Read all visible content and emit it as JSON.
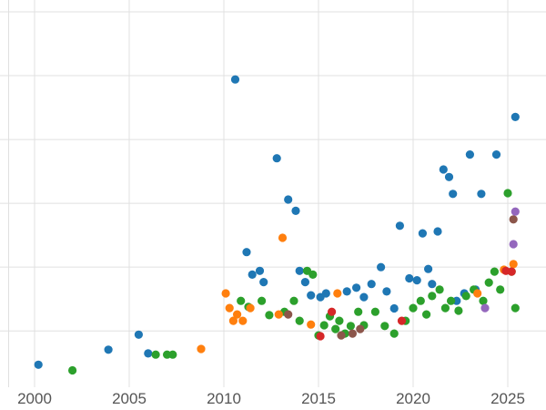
{
  "chart_data": {
    "type": "scatter",
    "title": "",
    "xlabel": "",
    "ylabel": "",
    "xlim": [
      1998.6,
      2027
    ],
    "ylim": [
      0,
      105
    ],
    "grid": true,
    "legend_position": "none",
    "x_tick_labels": [
      "2000",
      "2005",
      "2010",
      "2015",
      "2020",
      "2025"
    ],
    "x_tick_years": [
      2000,
      2005,
      2010,
      2015,
      2020,
      2025
    ],
    "y_gridlines": [
      15,
      32,
      49,
      66,
      83,
      100
    ],
    "grid_color": "#e0e0e0",
    "tick_label_color": "#555555",
    "marker_radius": 4.6,
    "series": [
      {
        "name": "blue",
        "color": "#1f77b4",
        "points": [
          [
            2000.2,
            6
          ],
          [
            2003.9,
            10
          ],
          [
            2005.5,
            14
          ],
          [
            2006.0,
            9
          ],
          [
            2010.6,
            82
          ],
          [
            2011.2,
            36
          ],
          [
            2011.5,
            30
          ],
          [
            2011.9,
            31
          ],
          [
            2012.1,
            28
          ],
          [
            2012.8,
            61
          ],
          [
            2013.4,
            50
          ],
          [
            2013.8,
            47
          ],
          [
            2014.0,
            31
          ],
          [
            2014.3,
            28
          ],
          [
            2014.6,
            24.5
          ],
          [
            2015.1,
            24
          ],
          [
            2015.4,
            25
          ],
          [
            2016.5,
            25.5
          ],
          [
            2017.0,
            26.5
          ],
          [
            2017.4,
            24
          ],
          [
            2017.8,
            27.5
          ],
          [
            2018.3,
            32
          ],
          [
            2018.6,
            25.5
          ],
          [
            2019.0,
            21
          ],
          [
            2019.3,
            43
          ],
          [
            2019.8,
            29
          ],
          [
            2020.2,
            28.5
          ],
          [
            2020.5,
            41
          ],
          [
            2020.8,
            31.5
          ],
          [
            2021.0,
            27.5
          ],
          [
            2021.3,
            41.5
          ],
          [
            2021.6,
            58
          ],
          [
            2021.9,
            56
          ],
          [
            2022.1,
            51.5
          ],
          [
            2022.3,
            23
          ],
          [
            2022.7,
            25
          ],
          [
            2023.0,
            62
          ],
          [
            2023.3,
            26
          ],
          [
            2023.6,
            51.5
          ],
          [
            2024.4,
            62
          ],
          [
            2025.4,
            72
          ]
        ]
      },
      {
        "name": "green",
        "color": "#2ca02c",
        "points": [
          [
            2002.0,
            4.5
          ],
          [
            2006.4,
            8.7
          ],
          [
            2007.0,
            8.7
          ],
          [
            2007.3,
            8.7
          ],
          [
            2010.9,
            23
          ],
          [
            2011.3,
            21.4
          ],
          [
            2012.0,
            23
          ],
          [
            2012.4,
            19.2
          ],
          [
            2013.2,
            20.1
          ],
          [
            2013.7,
            23
          ],
          [
            2014.0,
            17.7
          ],
          [
            2014.4,
            31
          ],
          [
            2014.7,
            30
          ],
          [
            2015.0,
            13.8
          ],
          [
            2015.3,
            16.5
          ],
          [
            2015.6,
            18.9
          ],
          [
            2015.9,
            15.5
          ],
          [
            2016.1,
            17.7
          ],
          [
            2016.4,
            14.3
          ],
          [
            2016.7,
            16.3
          ],
          [
            2017.1,
            20.1
          ],
          [
            2017.4,
            16.5
          ],
          [
            2018.0,
            20.1
          ],
          [
            2018.5,
            16.3
          ],
          [
            2019.0,
            14.3
          ],
          [
            2019.6,
            17.7
          ],
          [
            2020.0,
            21.1
          ],
          [
            2020.4,
            23
          ],
          [
            2020.7,
            19.4
          ],
          [
            2021.0,
            24.3
          ],
          [
            2021.4,
            26
          ],
          [
            2021.7,
            21.1
          ],
          [
            2022.0,
            23
          ],
          [
            2022.4,
            20.4
          ],
          [
            2022.8,
            24.3
          ],
          [
            2023.2,
            26
          ],
          [
            2023.7,
            23
          ],
          [
            2024.0,
            27.9
          ],
          [
            2024.3,
            30.8
          ],
          [
            2024.6,
            26
          ],
          [
            2025.0,
            51.7
          ],
          [
            2025.2,
            30.8
          ],
          [
            2025.4,
            21.1
          ]
        ]
      },
      {
        "name": "orange",
        "color": "#ff7f0e",
        "points": [
          [
            2008.8,
            10.2
          ],
          [
            2010.1,
            25
          ],
          [
            2010.3,
            21.1
          ],
          [
            2010.5,
            17.7
          ],
          [
            2010.7,
            19.4
          ],
          [
            2011.0,
            17.7
          ],
          [
            2011.4,
            21.1
          ],
          [
            2012.9,
            19.4
          ],
          [
            2013.1,
            39.8
          ],
          [
            2014.6,
            16.7
          ],
          [
            2016.0,
            25
          ],
          [
            2023.4,
            25
          ],
          [
            2024.8,
            31.3
          ],
          [
            2025.3,
            32.8
          ]
        ]
      },
      {
        "name": "red",
        "color": "#d62728",
        "points": [
          [
            2015.1,
            13.6
          ],
          [
            2015.7,
            20.1
          ],
          [
            2019.4,
            17.7
          ],
          [
            2024.9,
            31
          ],
          [
            2025.2,
            30.8
          ]
        ]
      },
      {
        "name": "brown",
        "color": "#8c564b",
        "points": [
          [
            2013.4,
            19.4
          ],
          [
            2016.2,
            13.8
          ],
          [
            2016.8,
            14.3
          ],
          [
            2017.2,
            15.5
          ],
          [
            2025.3,
            44.7
          ]
        ]
      },
      {
        "name": "purple",
        "color": "#9467bd",
        "points": [
          [
            2023.8,
            21.1
          ],
          [
            2025.3,
            38.1
          ],
          [
            2025.4,
            46.8
          ]
        ]
      }
    ]
  }
}
